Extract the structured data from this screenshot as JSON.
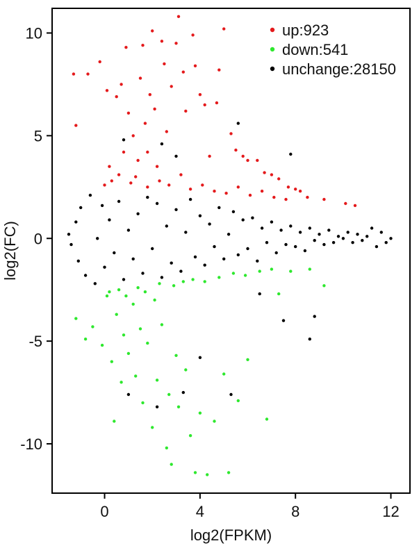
{
  "chart_data": {
    "type": "scatter",
    "title": "",
    "xlabel": "log2(FPKM)",
    "ylabel": "log2(FC)",
    "xlim": [
      -2.2,
      12.8
    ],
    "ylim": [
      -12.4,
      11.2
    ],
    "x_ticks": [
      0,
      4,
      8,
      12
    ],
    "y_ticks": [
      -10,
      -5,
      0,
      5,
      10
    ],
    "x_tick_labels": [
      "0",
      "4",
      "8",
      "12"
    ],
    "y_tick_labels": [
      "-10",
      "-5",
      "0",
      "5",
      "10"
    ],
    "grid": false,
    "legend": {
      "placement": "top-right",
      "entries": [
        {
          "label": "up:923",
          "color": "#e41a1c"
        },
        {
          "label": "down:541",
          "color": "#2ee82e"
        },
        {
          "label": "unchange:28150",
          "color": "#000000"
        }
      ]
    },
    "series": [
      {
        "name": "up:923",
        "color": "#e41a1c",
        "points": [
          [
            -1.3,
            8.0
          ],
          [
            -1.2,
            5.5
          ],
          [
            -0.7,
            8.0
          ],
          [
            -0.2,
            8.6
          ],
          [
            0.1,
            7.2
          ],
          [
            0.2,
            3.5
          ],
          [
            0.5,
            6.9
          ],
          [
            0.7,
            7.5
          ],
          [
            0.8,
            4.2
          ],
          [
            0.9,
            9.3
          ],
          [
            1.0,
            6.1
          ],
          [
            1.2,
            5.0
          ],
          [
            1.4,
            3.8
          ],
          [
            1.5,
            7.8
          ],
          [
            1.6,
            9.4
          ],
          [
            1.7,
            5.6
          ],
          [
            1.8,
            4.2
          ],
          [
            1.9,
            7.0
          ],
          [
            2.0,
            10.1
          ],
          [
            2.1,
            6.3
          ],
          [
            2.2,
            3.5
          ],
          [
            2.4,
            9.6
          ],
          [
            2.5,
            8.5
          ],
          [
            2.6,
            5.2
          ],
          [
            2.8,
            7.4
          ],
          [
            3.0,
            9.5
          ],
          [
            3.1,
            10.8
          ],
          [
            3.3,
            8.1
          ],
          [
            3.4,
            6.2
          ],
          [
            3.7,
            9.9
          ],
          [
            3.8,
            8.4
          ],
          [
            4.0,
            7.0
          ],
          [
            4.2,
            6.5
          ],
          [
            4.4,
            4.0
          ],
          [
            4.7,
            6.6
          ],
          [
            4.8,
            8.2
          ],
          [
            5.0,
            10.2
          ],
          [
            5.3,
            5.1
          ],
          [
            5.5,
            4.3
          ],
          [
            5.8,
            4.0
          ],
          [
            6.0,
            3.8
          ],
          [
            6.4,
            3.8
          ],
          [
            6.7,
            3.2
          ],
          [
            7.0,
            3.1
          ],
          [
            7.3,
            2.9
          ],
          [
            7.7,
            2.5
          ],
          [
            8.0,
            2.4
          ],
          [
            8.2,
            2.3
          ],
          [
            8.5,
            2.0
          ],
          [
            9.2,
            1.9
          ],
          [
            10.1,
            1.7
          ],
          [
            10.5,
            1.6
          ],
          [
            0.0,
            2.6
          ],
          [
            0.3,
            2.8
          ],
          [
            0.6,
            3.1
          ],
          [
            1.1,
            2.7
          ],
          [
            1.3,
            3.0
          ],
          [
            1.8,
            2.5
          ],
          [
            2.3,
            2.8
          ],
          [
            2.7,
            2.6
          ],
          [
            3.2,
            3.1
          ],
          [
            3.6,
            2.4
          ],
          [
            4.1,
            2.6
          ],
          [
            4.6,
            2.3
          ],
          [
            5.1,
            2.2
          ],
          [
            5.6,
            2.5
          ],
          [
            6.1,
            2.1
          ],
          [
            6.6,
            2.3
          ],
          [
            7.1,
            2.0
          ],
          [
            7.6,
            1.9
          ]
        ]
      },
      {
        "name": "down:541",
        "color": "#2ee82e",
        "points": [
          [
            -1.2,
            -3.9
          ],
          [
            -0.8,
            -4.9
          ],
          [
            -0.5,
            -4.3
          ],
          [
            -0.1,
            -5.2
          ],
          [
            0.1,
            -2.8
          ],
          [
            0.3,
            -6.0
          ],
          [
            0.4,
            -8.9
          ],
          [
            0.5,
            -3.7
          ],
          [
            0.7,
            -7.0
          ],
          [
            0.8,
            -4.7
          ],
          [
            1.0,
            -5.6
          ],
          [
            1.2,
            -3.2
          ],
          [
            1.3,
            -6.7
          ],
          [
            1.5,
            -4.4
          ],
          [
            1.6,
            -8.0
          ],
          [
            1.8,
            -5.1
          ],
          [
            2.0,
            -9.2
          ],
          [
            2.1,
            -3.0
          ],
          [
            2.2,
            -6.9
          ],
          [
            2.4,
            -4.2
          ],
          [
            2.6,
            -10.2
          ],
          [
            2.7,
            -7.6
          ],
          [
            2.8,
            -11.0
          ],
          [
            3.0,
            -5.7
          ],
          [
            3.1,
            -8.2
          ],
          [
            3.4,
            -6.4
          ],
          [
            3.6,
            -9.6
          ],
          [
            3.8,
            -11.4
          ],
          [
            4.0,
            -8.5
          ],
          [
            4.3,
            -11.5
          ],
          [
            4.6,
            -8.9
          ],
          [
            5.0,
            -6.6
          ],
          [
            5.2,
            -11.4
          ],
          [
            5.6,
            -7.9
          ],
          [
            6.0,
            -5.9
          ],
          [
            6.8,
            -8.8
          ],
          [
            7.3,
            -2.7
          ],
          [
            7.8,
            -1.6
          ],
          [
            8.6,
            -1.5
          ],
          [
            9.2,
            -2.3
          ],
          [
            0.2,
            -2.6
          ],
          [
            0.6,
            -2.5
          ],
          [
            0.9,
            -2.8
          ],
          [
            1.4,
            -2.4
          ],
          [
            1.7,
            -2.6
          ],
          [
            2.3,
            -2.2
          ],
          [
            2.9,
            -2.3
          ],
          [
            3.3,
            -2.1
          ],
          [
            3.7,
            -2.0
          ],
          [
            4.2,
            -2.1
          ],
          [
            4.8,
            -1.9
          ],
          [
            5.4,
            -1.7
          ],
          [
            5.9,
            -1.8
          ],
          [
            6.5,
            -1.6
          ],
          [
            7.0,
            -1.5
          ]
        ]
      },
      {
        "name": "unchange:28150",
        "color": "#000000",
        "points": [
          [
            -1.5,
            0.2
          ],
          [
            -1.4,
            -0.3
          ],
          [
            -1.2,
            0.8
          ],
          [
            -1.1,
            -1.1
          ],
          [
            -1.0,
            1.5
          ],
          [
            -0.8,
            -1.8
          ],
          [
            -0.6,
            2.1
          ],
          [
            -0.4,
            -2.2
          ],
          [
            -0.3,
            0.0
          ],
          [
            -0.1,
            1.6
          ],
          [
            0.0,
            -1.4
          ],
          [
            0.2,
            0.9
          ],
          [
            0.4,
            -0.7
          ],
          [
            0.6,
            1.8
          ],
          [
            0.8,
            -2.0
          ],
          [
            1.0,
            0.4
          ],
          [
            1.2,
            -1.0
          ],
          [
            1.4,
            1.2
          ],
          [
            1.6,
            -1.7
          ],
          [
            1.8,
            2.0
          ],
          [
            2.0,
            -0.5
          ],
          [
            2.2,
            1.7
          ],
          [
            2.4,
            -1.9
          ],
          [
            2.6,
            0.6
          ],
          [
            2.8,
            -1.2
          ],
          [
            3.0,
            1.4
          ],
          [
            3.2,
            -1.6
          ],
          [
            3.4,
            0.3
          ],
          [
            3.6,
            1.9
          ],
          [
            3.8,
            -0.9
          ],
          [
            4.0,
            1.1
          ],
          [
            4.2,
            -1.3
          ],
          [
            4.4,
            0.7
          ],
          [
            4.6,
            -0.4
          ],
          [
            4.8,
            1.5
          ],
          [
            5.0,
            -1.0
          ],
          [
            5.2,
            0.2
          ],
          [
            5.4,
            1.3
          ],
          [
            5.6,
            -0.8
          ],
          [
            5.8,
            0.9
          ],
          [
            6.0,
            -0.5
          ],
          [
            6.2,
            1.0
          ],
          [
            6.4,
            -1.1
          ],
          [
            6.6,
            0.5
          ],
          [
            6.8,
            -0.2
          ],
          [
            7.0,
            0.8
          ],
          [
            7.2,
            -0.7
          ],
          [
            7.4,
            0.4
          ],
          [
            7.6,
            -0.3
          ],
          [
            7.8,
            0.6
          ],
          [
            8.0,
            -0.4
          ],
          [
            8.2,
            0.3
          ],
          [
            8.4,
            -0.6
          ],
          [
            8.6,
            0.5
          ],
          [
            8.8,
            -0.1
          ],
          [
            9.0,
            0.2
          ],
          [
            9.2,
            -0.3
          ],
          [
            9.4,
            0.4
          ],
          [
            9.6,
            -0.2
          ],
          [
            9.8,
            0.1
          ],
          [
            10.0,
            0.0
          ],
          [
            10.2,
            0.3
          ],
          [
            10.4,
            -0.2
          ],
          [
            10.6,
            0.2
          ],
          [
            10.8,
            -0.1
          ],
          [
            11.0,
            0.1
          ],
          [
            11.2,
            0.5
          ],
          [
            11.4,
            -0.4
          ],
          [
            11.6,
            0.3
          ],
          [
            11.8,
            -0.2
          ],
          [
            12.0,
            0.0
          ],
          [
            0.8,
            4.8
          ],
          [
            2.4,
            4.6
          ],
          [
            3.0,
            4.0
          ],
          [
            5.6,
            5.6
          ],
          [
            7.8,
            4.1
          ],
          [
            4.0,
            -5.8
          ],
          [
            5.3,
            -7.6
          ],
          [
            8.6,
            -4.9
          ],
          [
            8.8,
            -3.8
          ],
          [
            2.2,
            -8.2
          ],
          [
            3.3,
            -7.5
          ],
          [
            1.0,
            -7.6
          ],
          [
            7.5,
            -4.0
          ],
          [
            6.5,
            -2.7
          ]
        ]
      }
    ]
  }
}
